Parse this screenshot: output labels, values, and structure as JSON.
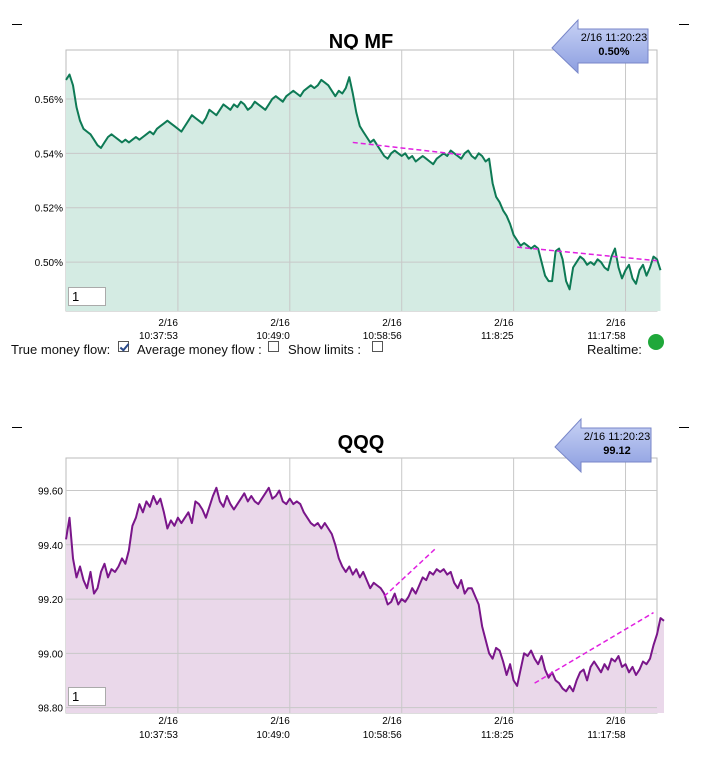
{
  "controls": {
    "true_money_flow_label": "True money flow:",
    "true_money_flow_checked": true,
    "average_money_flow_label": "Average money flow :",
    "average_money_flow_checked": false,
    "show_limits_label": "Show limits :",
    "show_limits_checked": false,
    "realtime_label": "Realtime:",
    "realtime_color": "#1fa83a"
  },
  "chart_data": [
    {
      "type": "area",
      "title": "NQ MF",
      "input_value": "1",
      "callout": {
        "time": "2/16 11:20:23",
        "value": "0.50%"
      },
      "line_color": "#0e7a55",
      "fill_color": "#d4ebe3",
      "ylim": [
        0.482,
        0.578
      ],
      "y_ticks": [
        0.5,
        0.52,
        0.54,
        0.56
      ],
      "y_tick_labels": [
        "0.50%",
        "0.52%",
        "0.54%",
        "0.56%"
      ],
      "x_ticks": [
        {
          "date": "2/16",
          "time": "10:37:53",
          "index": 32
        },
        {
          "date": "2/16",
          "time": "10:49:0",
          "index": 64
        },
        {
          "date": "2/16",
          "time": "10:58:56",
          "index": 96
        },
        {
          "date": "2/16",
          "time": "11:8:25",
          "index": 128
        },
        {
          "date": "2/16",
          "time": "11:17:58",
          "index": 160
        }
      ],
      "x_max_index": 169,
      "grid": true,
      "values": [
        0.567,
        0.569,
        0.565,
        0.557,
        0.552,
        0.549,
        0.548,
        0.547,
        0.545,
        0.543,
        0.542,
        0.544,
        0.546,
        0.547,
        0.546,
        0.545,
        0.544,
        0.545,
        0.544,
        0.545,
        0.546,
        0.545,
        0.546,
        0.547,
        0.548,
        0.547,
        0.549,
        0.55,
        0.551,
        0.552,
        0.551,
        0.55,
        0.549,
        0.548,
        0.55,
        0.552,
        0.554,
        0.553,
        0.552,
        0.551,
        0.553,
        0.556,
        0.555,
        0.554,
        0.556,
        0.558,
        0.557,
        0.556,
        0.558,
        0.557,
        0.559,
        0.558,
        0.556,
        0.557,
        0.559,
        0.558,
        0.557,
        0.556,
        0.558,
        0.56,
        0.561,
        0.56,
        0.559,
        0.561,
        0.562,
        0.563,
        0.562,
        0.561,
        0.563,
        0.564,
        0.565,
        0.564,
        0.565,
        0.567,
        0.566,
        0.565,
        0.563,
        0.561,
        0.563,
        0.562,
        0.564,
        0.568,
        0.562,
        0.555,
        0.55,
        0.548,
        0.546,
        0.544,
        0.545,
        0.543,
        0.541,
        0.539,
        0.538,
        0.54,
        0.541,
        0.54,
        0.539,
        0.54,
        0.538,
        0.539,
        0.537,
        0.538,
        0.539,
        0.538,
        0.537,
        0.536,
        0.538,
        0.539,
        0.54,
        0.539,
        0.541,
        0.54,
        0.539,
        0.538,
        0.54,
        0.541,
        0.539,
        0.538,
        0.54,
        0.539,
        0.537,
        0.538,
        0.529,
        0.524,
        0.522,
        0.519,
        0.517,
        0.514,
        0.51,
        0.508,
        0.506,
        0.507,
        0.506,
        0.505,
        0.506,
        0.505,
        0.5,
        0.495,
        0.493,
        0.493,
        0.504,
        0.505,
        0.501,
        0.493,
        0.49,
        0.498,
        0.5,
        0.502,
        0.501,
        0.499,
        0.5,
        0.499,
        0.501,
        0.5,
        0.498,
        0.497,
        0.502,
        0.505,
        0.498,
        0.494,
        0.497,
        0.499,
        0.494,
        0.492,
        0.497,
        0.499,
        0.495,
        0.498,
        0.502,
        0.501,
        0.497
      ],
      "trend_lines": [
        {
          "from": [
            82,
            0.544
          ],
          "to": [
            113,
            0.5395
          ]
        },
        {
          "from": [
            129,
            0.5055
          ],
          "to": [
            169,
            0.5005
          ]
        }
      ]
    },
    {
      "type": "area",
      "title": "QQQ",
      "input_value": "1",
      "callout": {
        "time": "2/16 11:20:23",
        "value": "99.12"
      },
      "line_color": "#7a168a",
      "fill_color": "#ead8ea",
      "ylim": [
        98.78,
        99.72
      ],
      "y_ticks": [
        98.8,
        99.0,
        99.2,
        99.4,
        99.6
      ],
      "y_tick_labels": [
        "98.80",
        "99.00",
        "99.20",
        "99.40",
        "99.60"
      ],
      "x_ticks": [
        {
          "date": "2/16",
          "time": "10:37:53",
          "index": 32
        },
        {
          "date": "2/16",
          "time": "10:49:0",
          "index": 64
        },
        {
          "date": "2/16",
          "time": "10:58:56",
          "index": 96
        },
        {
          "date": "2/16",
          "time": "11:8:25",
          "index": 128
        },
        {
          "date": "2/16",
          "time": "11:17:58",
          "index": 160
        }
      ],
      "x_max_index": 169,
      "grid": true,
      "values": [
        99.42,
        99.5,
        99.35,
        99.28,
        99.32,
        99.27,
        99.24,
        99.3,
        99.22,
        99.24,
        99.3,
        99.33,
        99.28,
        99.31,
        99.3,
        99.32,
        99.35,
        99.33,
        99.38,
        99.47,
        99.5,
        99.55,
        99.52,
        99.56,
        99.54,
        99.58,
        99.55,
        99.57,
        99.52,
        99.46,
        99.49,
        99.47,
        99.5,
        99.48,
        99.5,
        99.52,
        99.48,
        99.56,
        99.55,
        99.53,
        99.5,
        99.54,
        99.58,
        99.61,
        99.56,
        99.54,
        99.58,
        99.55,
        99.53,
        99.55,
        99.57,
        99.59,
        99.56,
        99.58,
        99.56,
        99.55,
        99.57,
        99.59,
        99.61,
        99.57,
        99.58,
        99.6,
        99.56,
        99.55,
        99.57,
        99.55,
        99.56,
        99.55,
        99.52,
        99.5,
        99.48,
        99.47,
        99.48,
        99.46,
        99.48,
        99.46,
        99.44,
        99.4,
        99.35,
        99.32,
        99.3,
        99.32,
        99.29,
        99.31,
        99.28,
        99.3,
        99.27,
        99.24,
        99.26,
        99.25,
        99.24,
        99.22,
        99.18,
        99.19,
        99.22,
        99.18,
        99.2,
        99.19,
        99.21,
        99.24,
        99.22,
        99.25,
        99.28,
        99.27,
        99.3,
        99.29,
        99.31,
        99.3,
        99.31,
        99.29,
        99.3,
        99.26,
        99.24,
        99.27,
        99.22,
        99.24,
        99.24,
        99.21,
        99.18,
        99.1,
        99.05,
        99.0,
        98.98,
        99.02,
        99.01,
        98.97,
        98.92,
        98.96,
        98.9,
        98.88,
        98.94,
        99.0,
        98.99,
        99.01,
        98.98,
        98.96,
        98.99,
        98.94,
        98.91,
        98.93,
        98.9,
        98.89,
        98.87,
        98.86,
        98.88,
        98.86,
        98.9,
        98.93,
        98.94,
        98.9,
        98.95,
        98.97,
        98.95,
        98.93,
        98.96,
        98.94,
        98.98,
        98.97,
        98.99,
        98.95,
        98.96,
        98.93,
        98.95,
        98.92,
        98.94,
        98.97,
        98.96,
        98.98,
        99.03,
        99.07,
        99.13,
        99.12
      ],
      "trend_lines": [
        {
          "from": [
            91,
            99.21
          ],
          "to": [
            106,
            99.39
          ]
        },
        {
          "from": [
            134,
            98.89
          ],
          "to": [
            168,
            99.15
          ]
        }
      ]
    }
  ]
}
